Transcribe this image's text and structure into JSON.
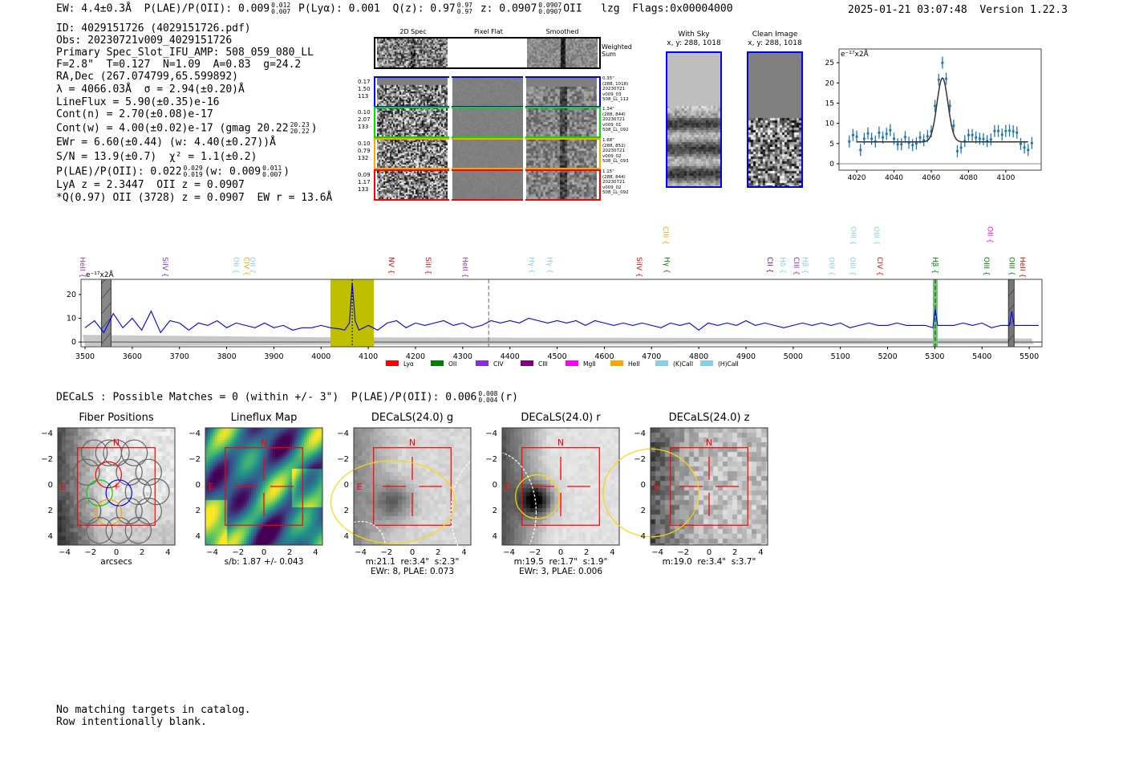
{
  "header": {
    "ew": "EW: 4.4±0.3Å",
    "plae_label": "P(LAE)/P(OII): 0.009",
    "plae_hi": "0.012",
    "plae_lo": "0.007",
    "plya": "P(Lyα): 0.001",
    "qz_label": "Q(z): 0.97",
    "qz_hi": "0.97",
    "qz_lo": "0.97",
    "z_label": "z: 0.0907",
    "z_hi": "0.0907",
    "z_lo": "0.0907",
    "z_line": "OII",
    "lzg": "lzg",
    "flags": "Flags:0x00004000",
    "timestamp": "2025-01-21 03:07:48",
    "version": "Version 1.22.3"
  },
  "info": {
    "id": "ID: 4029151726 (4029151726.pdf)",
    "obs": "Obs: 20230721v009_4029151726",
    "primary": "Primary Spec_Slot_IFU_AMP: 508_059_080_LL",
    "fiber": "F=2.8\"  T=0.127  N=1.09  A=0.83  g=24.2",
    "radec": "RA,Dec (267.074799,65.599892)",
    "lambda": "λ = 4066.03Å  σ = 2.94(±0.20)Å",
    "lineflux": "LineFlux = 5.90(±0.35)e-16",
    "cont_n": "Cont(n) = 2.70(±0.08)e-17",
    "cont_w": "Cont(w) = 4.00(±0.02)e-17 (gmag 20.22",
    "cont_w_hi": "20.23",
    "cont_w_lo": "20.22",
    "cont_w_post": ")",
    "ewr": "EWr = 6.60(±0.44) (w: 4.40(±0.27))Å",
    "sn": "S/N = 13.9(±0.7)  χ² = 1.1(±0.2)",
    "plae": "P(LAE)/P(OII): 0.022",
    "plae_hi": "0.029",
    "plae_lo": "0.019",
    "plae_mid": "(w: 0.009",
    "plae_hi2": "0.011",
    "plae_lo2": "0.007",
    "plae_post": ")",
    "lya": "LyA z = 2.3447  OII z = 0.0907",
    "q": "*Q(0.97) OII (3728) z = 0.0907  EW r = 13.6Å"
  },
  "spec2d": {
    "col_titles": [
      "2D Spec",
      "Pixel Flat",
      "Smoothed"
    ],
    "weighted_sum": "Weighted\nSum",
    "rows": [
      {
        "color": "#0000ff",
        "left": "0.17\n1.50\n113",
        "right": "0.35\"\n(288, 1018)\n20230721\nv009_03\n508_LL_112"
      },
      {
        "color": "#00dd00",
        "left": "0.10\n2.07\n133",
        "right": "1.34\"\n(288, 844)\n20230721\nv009_01\n508_LL_092"
      },
      {
        "color": "#ffa500",
        "left": "0.10\n0.79\n132",
        "right": "1.68\"\n(288, 852)\n20230721\nv009_02\n508_LL_093"
      },
      {
        "color": "#ff0000",
        "left": "0.09\n1.17\n133",
        "right": "1.15\"\n(288, 844)\n20230721\nv009_02\n508_LL_092"
      }
    ]
  },
  "cutouts": [
    {
      "title": "With Sky",
      "coords": "x, y: 288, 1018"
    },
    {
      "title": "Clean Image",
      "coords": "x, y: 288, 1018"
    }
  ],
  "chart_data": [
    {
      "type": "scatter",
      "name": "line-fit-zoom",
      "unit_label": "e⁻¹⁷x2Å",
      "xlim": [
        4010.5,
        4119
      ],
      "ylim": [
        -1.6,
        28.4
      ],
      "xticks": [
        4020,
        4040,
        4060,
        4080,
        4100
      ],
      "yticks": [
        0,
        5,
        10,
        15,
        20,
        25
      ],
      "x": [
        4016,
        4018,
        4020,
        4022,
        4024,
        4026,
        4028,
        4030,
        4032,
        4034,
        4036,
        4038,
        4040,
        4042,
        4044,
        4046,
        4048,
        4050,
        4052,
        4054,
        4056,
        4058,
        4060,
        4062,
        4064,
        4066,
        4068,
        4070,
        4072,
        4074,
        4076,
        4078,
        4080,
        4082,
        4084,
        4086,
        4088,
        4090,
        4092,
        4094,
        4096,
        4098,
        4100,
        4102,
        4104,
        4106,
        4108,
        4110,
        4112,
        4114
      ],
      "y": [
        5.5,
        7.1,
        6.7,
        3.4,
        6.2,
        7.5,
        6.2,
        5.5,
        7.7,
        6.5,
        7.4,
        8.3,
        6.2,
        4.8,
        4.8,
        6.6,
        5.2,
        4.6,
        5.0,
        6.5,
        5.8,
        6.8,
        8.0,
        14.3,
        20.8,
        25.0,
        21.0,
        14.3,
        9.4,
        3.1,
        4.0,
        5.6,
        7.1,
        7.1,
        6.5,
        6.2,
        6.1,
        5.6,
        6.0,
        8.1,
        8.1,
        7.2,
        8.1,
        8.2,
        8.0,
        7.7,
        4.9,
        4.0,
        3.4,
        5.1
      ],
      "yerr": 1.5,
      "fit": {
        "center": 4066.03,
        "sigma": 2.94,
        "continuum": 5.4,
        "peak": 21.2,
        "range": [
          4020,
          4112
        ]
      }
    },
    {
      "type": "line",
      "name": "full-spectrum",
      "unit_label": "e⁻¹⁷x2Å",
      "xlim": [
        3491.5,
        5527
      ],
      "ylim": [
        -2,
        26.4
      ],
      "xticks": [
        3500,
        3600,
        3700,
        3800,
        3900,
        4000,
        4100,
        4200,
        4300,
        4400,
        4500,
        4600,
        4700,
        4800,
        4900,
        5000,
        5100,
        5200,
        5300,
        5400,
        5500
      ],
      "yticks": [
        0,
        10,
        20
      ],
      "x": [
        3500,
        3520,
        3540,
        3560,
        3580,
        3600,
        3620,
        3640,
        3660,
        3680,
        3700,
        3720,
        3740,
        3760,
        3780,
        3800,
        3820,
        3840,
        3860,
        3880,
        3900,
        3920,
        3940,
        3960,
        3980,
        4000,
        4020,
        4040,
        4050,
        4060,
        4066,
        4072,
        4080,
        4100,
        4120,
        4140,
        4160,
        4180,
        4200,
        4220,
        4240,
        4260,
        4280,
        4300,
        4320,
        4340,
        4360,
        4380,
        4400,
        4420,
        4440,
        4460,
        4480,
        4500,
        4520,
        4540,
        4560,
        4580,
        4600,
        4620,
        4640,
        4660,
        4680,
        4700,
        4720,
        4740,
        4760,
        4780,
        4800,
        4820,
        4840,
        4860,
        4880,
        4900,
        4920,
        4940,
        4960,
        4980,
        5000,
        5020,
        5040,
        5060,
        5080,
        5100,
        5120,
        5140,
        5160,
        5180,
        5200,
        5220,
        5240,
        5260,
        5280,
        5296,
        5301,
        5306,
        5320,
        5340,
        5360,
        5380,
        5400,
        5420,
        5440,
        5458,
        5463,
        5468,
        5480,
        5500,
        5520
      ],
      "y": [
        6,
        9,
        4,
        12,
        6,
        10,
        5,
        13,
        4,
        9,
        8,
        5,
        8,
        7,
        9,
        6,
        8,
        7,
        6,
        8,
        6,
        7,
        5,
        6,
        6,
        7,
        6,
        5.5,
        5,
        8,
        25,
        9,
        5,
        7,
        5,
        8,
        9,
        6,
        8,
        7,
        8,
        9,
        7,
        8,
        6,
        7,
        9,
        8,
        9,
        8,
        10,
        9,
        8,
        9,
        8,
        9,
        7,
        9,
        8,
        7,
        8,
        7,
        8,
        7,
        6,
        8,
        7,
        8,
        5,
        8,
        7,
        8,
        7,
        9,
        7,
        8,
        7,
        6,
        7,
        8,
        7,
        8,
        7,
        8,
        6,
        7,
        8,
        7,
        7,
        8,
        7,
        7,
        7,
        6,
        14,
        7,
        7,
        7,
        8,
        7,
        8,
        6,
        7,
        7,
        13,
        7,
        7,
        7,
        7
      ],
      "error_band": [
        [
          3500,
          3
        ],
        [
          4000,
          2
        ],
        [
          5500,
          1.5
        ]
      ],
      "regions": [
        {
          "from": 3535,
          "to": 3555,
          "color": "#888888",
          "hatched": true
        },
        {
          "from": 4020,
          "to": 4112,
          "color": "#bfbf00",
          "hatched": false
        },
        {
          "from": 5296,
          "to": 5306,
          "color": "#6cc46c",
          "hatched": false
        },
        {
          "from": 5456,
          "to": 5468,
          "color": "#777777",
          "hatched": true
        }
      ],
      "vlines": [
        {
          "x": 4066,
          "style": "dotted",
          "color": "#000000"
        },
        {
          "x": 4355,
          "style": "dashed",
          "color": "#666666"
        },
        {
          "x": 5301,
          "style": "dashed",
          "color": "#333333"
        }
      ],
      "line_labels": [
        {
          "name": "HeII",
          "x": 3495,
          "color": "#9932cc",
          "row": 0
        },
        {
          "name": "SiIV",
          "x": 3670,
          "color": "#8a2be2",
          "row": 0
        },
        {
          "name": "OII",
          "x": 3820,
          "color": "#87ceeb",
          "row": 0
        },
        {
          "name": "CIV",
          "x": 3842,
          "color": "#ffa500",
          "row": 0
        },
        {
          "name": "OII",
          "x": 3855,
          "color": "#87ceeb",
          "row": 0
        },
        {
          "name": "NV",
          "x": 4149,
          "color": "#ff0000",
          "row": 0
        },
        {
          "name": "SiII",
          "x": 4227,
          "color": "#ff0000",
          "row": 0
        },
        {
          "name": "HeII",
          "x": 4305,
          "color": "#9932cc",
          "row": 0
        },
        {
          "name": "Hγ",
          "x": 4446,
          "color": "#87ceeb",
          "row": 0
        },
        {
          "name": "Hγ",
          "x": 4485,
          "color": "#87ceeb",
          "row": 0
        },
        {
          "name": "SiIV",
          "x": 4674,
          "color": "#ff0000",
          "row": 0
        },
        {
          "name": "CIII",
          "x": 4730,
          "color": "#ffa500",
          "row": 1
        },
        {
          "name": "Hγ",
          "x": 4733,
          "color": "#008000",
          "row": 0
        },
        {
          "name": "CII",
          "x": 4951,
          "color": "#800080",
          "row": 0
        },
        {
          "name": "Hδ",
          "x": 4978,
          "color": "#87ceeb",
          "row": 0
        },
        {
          "name": "CIII",
          "x": 5007,
          "color": "#8a2be2",
          "row": 0
        },
        {
          "name": "Hβ",
          "x": 5026,
          "color": "#87ceeb",
          "row": 0
        },
        {
          "name": "OIII",
          "x": 5082,
          "color": "#87ceeb",
          "row": 0
        },
        {
          "name": "OIII",
          "x": 5126,
          "color": "#87ceeb",
          "row": 0
        },
        {
          "name": "OIII",
          "x": 5128,
          "color": "#87ceeb",
          "row": 1
        },
        {
          "name": "OIII",
          "x": 5177,
          "color": "#87ceeb",
          "row": 1
        },
        {
          "name": "CIV",
          "x": 5184,
          "color": "#ff0000",
          "row": 0
        },
        {
          "name": "Hβ",
          "x": 5301,
          "color": "#008000",
          "row": 0
        },
        {
          "name": "OII",
          "x": 5417,
          "color": "#ff00ff",
          "row": 1
        },
        {
          "name": "OIII",
          "x": 5410,
          "color": "#008000",
          "row": 0
        },
        {
          "name": "OIII",
          "x": 5463,
          "color": "#008000",
          "row": 0
        },
        {
          "name": "HeII",
          "x": 5486,
          "color": "#ff0000",
          "row": 0
        }
      ],
      "legend": [
        {
          "label": "Lyα",
          "color": "#ff0000"
        },
        {
          "label": "OII",
          "color": "#008000"
        },
        {
          "label": "CIV",
          "color": "#8a2be2"
        },
        {
          "label": "CIII",
          "color": "#800080"
        },
        {
          "label": "MgII",
          "color": "#ff00ff"
        },
        {
          "label": "HeII",
          "color": "#ffa500"
        },
        {
          "label": "(K)CaII",
          "color": "#87ceeb"
        },
        {
          "label": "(H)CaII",
          "color": "#87ceeb"
        }
      ],
      "legend_placement": "bottom"
    }
  ],
  "decals": {
    "summary": "DECaLS : Possible Matches = 0 (within +/- 3\")  P(LAE)/P(OII): 0.006",
    "summary_hi": "0.008",
    "summary_lo": "0.004",
    "summary_post": "(r)",
    "ticks": [
      "−4",
      "−2",
      "0",
      "2",
      "4"
    ],
    "north": "N",
    "east": "E",
    "panels": [
      {
        "title": "Fiber Positions",
        "caption": "arcsecs"
      },
      {
        "title": "Lineflux Map",
        "caption": "s/b: 1.87 +/- 0.043"
      },
      {
        "title": "DECaLS(24.0) g",
        "caption": "m:21.1  re:3.4\"  s:2.3\"\nEWr: 8, PLAE: 0.073"
      },
      {
        "title": "DECaLS(24.0) r",
        "caption": "m:19.5  re:1.7\"  s:1.9\"\nEWr: 3, PLAE: 0.006"
      },
      {
        "title": "DECaLS(24.0) z",
        "caption": "m:19.0  re:3.4\"  s:3.7\""
      }
    ]
  },
  "footer": {
    "line1": "No matching targets in catalog.",
    "line2": "Row intentionally blank."
  }
}
